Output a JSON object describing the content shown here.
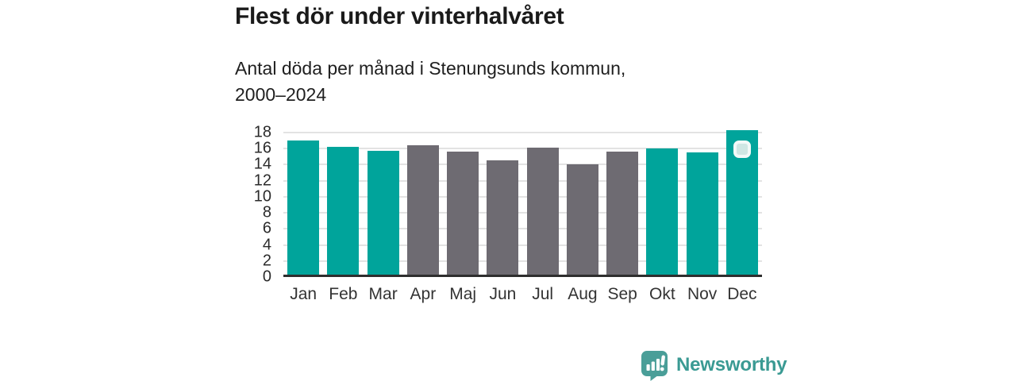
{
  "header": {
    "title": "Flest dör under vinterhalvåret",
    "subtitle_line1": "Antal döda per månad i Stenungsunds kommun,",
    "subtitle_line2": "2000–2024"
  },
  "chart_data": {
    "type": "bar",
    "title": "Flest dör under vinterhalvåret",
    "subtitle": "Antal döda per månad i Stenungsunds kommun, 2000–2024",
    "categories": [
      "Jan",
      "Feb",
      "Mar",
      "Apr",
      "Maj",
      "Jun",
      "Jul",
      "Aug",
      "Sep",
      "Okt",
      "Nov",
      "Dec"
    ],
    "values": [
      16.7,
      15.9,
      15.4,
      16.1,
      15.3,
      14.2,
      15.8,
      13.7,
      15.3,
      15.7,
      15.2,
      18.0
    ],
    "bar_groups": [
      "winter",
      "winter",
      "winter",
      "summer",
      "summer",
      "summer",
      "summer",
      "summer",
      "summer",
      "winter",
      "winter",
      "winter"
    ],
    "xlabel": "",
    "ylabel": "",
    "ylim": [
      0,
      18
    ],
    "yticks": [
      0,
      2,
      4,
      6,
      8,
      10,
      12,
      14,
      16,
      18
    ],
    "grid": "horizontal",
    "legend": "none",
    "marker_month": "Dec",
    "colors": {
      "winter_bar": "#00a49b",
      "summer_bar": "#6e6b72",
      "gridline": "#e3e3e3",
      "axis_line": "#2e2e2e",
      "marker_fill": "#cfe7e4",
      "marker_border": "#f2f9f8"
    }
  },
  "footer": {
    "brand": "Newsworthy",
    "brand_color": "#3a9a93"
  }
}
